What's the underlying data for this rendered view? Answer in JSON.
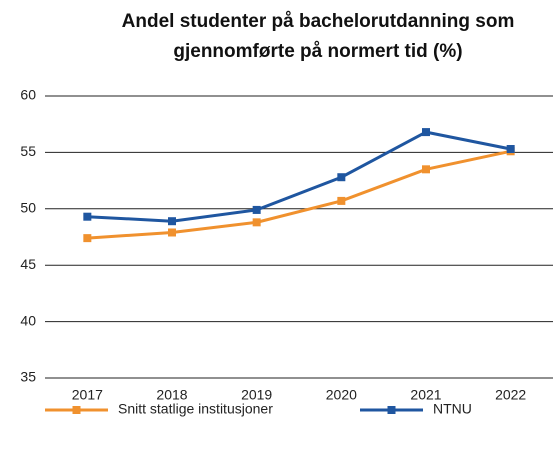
{
  "chart_data": {
    "type": "line",
    "title": [
      "Andel studenter på bachelorutdanning som",
      "gjennomførte på normert tid (%)"
    ],
    "categories": [
      "2017",
      "2018",
      "2019",
      "2020",
      "2021",
      "2022"
    ],
    "series": [
      {
        "name": "Snitt statlige institusjoner",
        "color": "#f0912e",
        "values": [
          47.4,
          47.9,
          48.8,
          50.7,
          53.5,
          55.1
        ]
      },
      {
        "name": "NTNU",
        "color": "#1f56a0",
        "values": [
          49.3,
          48.9,
          49.9,
          52.8,
          56.8,
          55.3
        ]
      }
    ],
    "ylim": [
      35,
      60
    ],
    "yticks": [
      35,
      40,
      45,
      50,
      55,
      60
    ],
    "grid": true,
    "legend": "bottom"
  }
}
